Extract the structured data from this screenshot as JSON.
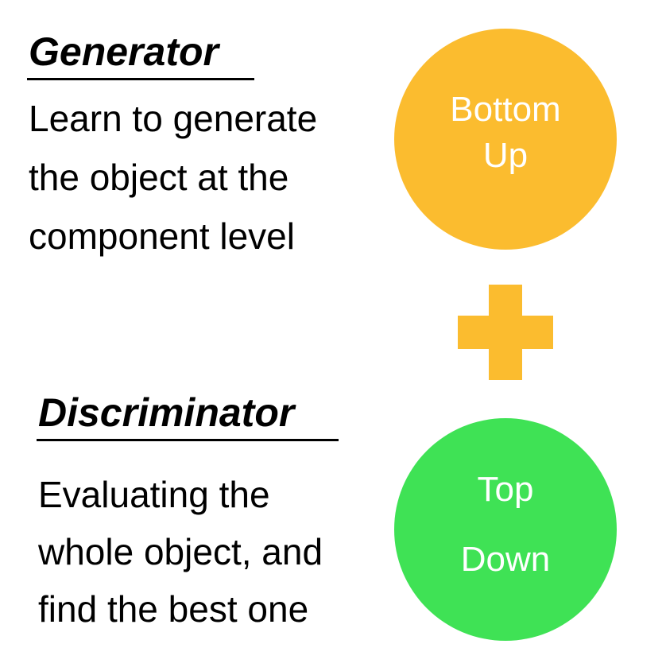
{
  "generator": {
    "title": "Generator",
    "description": "Learn to generate\nthe object at the\ncomponent level"
  },
  "discriminator": {
    "title": "Discriminator",
    "description": "Evaluating the\nwhole object, and\nfind the best one"
  },
  "bottom_up_circle": {
    "label": "Bottom\nUp",
    "color": "#FBBC2F"
  },
  "top_down_circle": {
    "label": "Top\nDown",
    "color": "#3FE255"
  },
  "plus_sign": {
    "color": "#FBBC2F"
  }
}
